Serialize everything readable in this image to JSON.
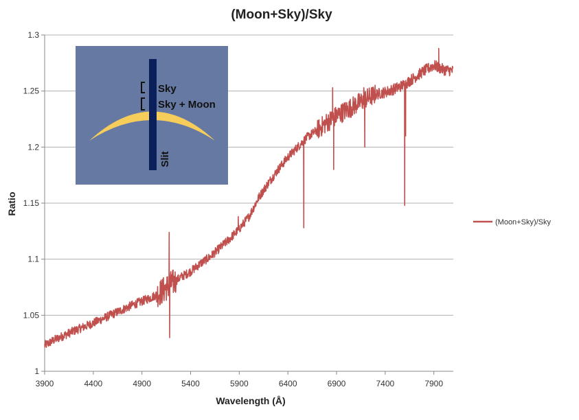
{
  "chart_data": {
    "type": "line",
    "title": "(Moon+Sky)/Sky",
    "xlabel": "Wavelength (Å)",
    "ylabel": "Ratio",
    "xlim": [
      3900,
      8100
    ],
    "ylim": [
      1,
      1.3
    ],
    "x_ticks": [
      "3900",
      "4400",
      "4900",
      "5400",
      "5900",
      "6400",
      "6900",
      "7400",
      "7900"
    ],
    "y_ticks": [
      "1",
      "1.05",
      "1.1",
      "1.15",
      "1.2",
      "1.25",
      "1.3"
    ],
    "grid": "horizontal",
    "legend_position": "right",
    "series": [
      {
        "name": "(Moon+Sky)/Sky",
        "color": "#c0504d",
        "x": [
          3900,
          4000,
          4200,
          4400,
          4600,
          4800,
          5000,
          5100,
          5200,
          5300,
          5400,
          5500,
          5600,
          5700,
          5800,
          5900,
          6000,
          6100,
          6200,
          6300,
          6400,
          6500,
          6600,
          6700,
          6800,
          6900,
          7000,
          7100,
          7200,
          7300,
          7400,
          7500,
          7600,
          7700,
          7800,
          7900,
          8000,
          8100
        ],
        "y": [
          1.023,
          1.028,
          1.036,
          1.043,
          1.051,
          1.059,
          1.066,
          1.071,
          1.078,
          1.084,
          1.089,
          1.096,
          1.102,
          1.11,
          1.118,
          1.127,
          1.138,
          1.155,
          1.168,
          1.18,
          1.191,
          1.2,
          1.209,
          1.215,
          1.222,
          1.228,
          1.233,
          1.238,
          1.243,
          1.247,
          1.249,
          1.252,
          1.256,
          1.262,
          1.268,
          1.273,
          1.269,
          1.268
        ]
      }
    ],
    "spikes": [
      {
        "x": 5180,
        "y": 1.124
      },
      {
        "x": 5185,
        "y": 1.03
      },
      {
        "x": 5890,
        "y": 1.138
      },
      {
        "x": 6563,
        "y": 1.128
      },
      {
        "x": 6860,
        "y": 1.253
      },
      {
        "x": 6870,
        "y": 1.18
      },
      {
        "x": 7180,
        "y": 1.253
      },
      {
        "x": 7190,
        "y": 1.2
      },
      {
        "x": 7600,
        "y": 1.148
      },
      {
        "x": 7610,
        "y": 1.21
      },
      {
        "x": 7950,
        "y": 1.288
      }
    ]
  },
  "inset": {
    "background": "#6579a3",
    "moon_color": "#f6cd5b",
    "slit_color": "#0b1f5a",
    "label_sky": "Sky",
    "label_sky_moon": "Sky + Moon",
    "label_slit": "Slit"
  }
}
